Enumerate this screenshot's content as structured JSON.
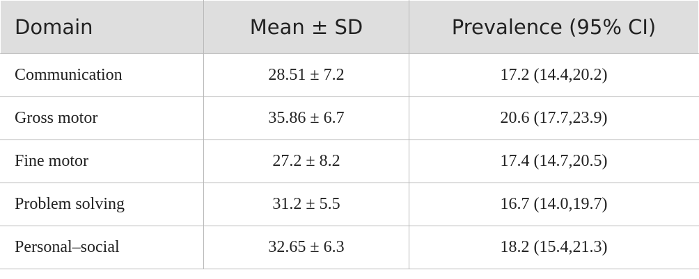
{
  "table": {
    "header": [
      "Domain",
      "Mean ± SD",
      "Prevalence (95% CI)"
    ],
    "rows": [
      [
        "Communication",
        "28.51 ± 7.2",
        "17.2 (14.4,20.2)"
      ],
      [
        "Gross motor",
        "35.86 ± 6.7",
        "20.6 (17.7,23.9)"
      ],
      [
        "Fine motor",
        "27.2 ± 8.2",
        "17.4 (14.7,20.5)"
      ],
      [
        "Problem solving",
        "31.2 ± 5.5",
        "16.7 (14.0,19.7)"
      ],
      [
        "Personal–social",
        "32.65 ± 6.3",
        "18.2 (15.4,21.3)"
      ]
    ]
  }
}
